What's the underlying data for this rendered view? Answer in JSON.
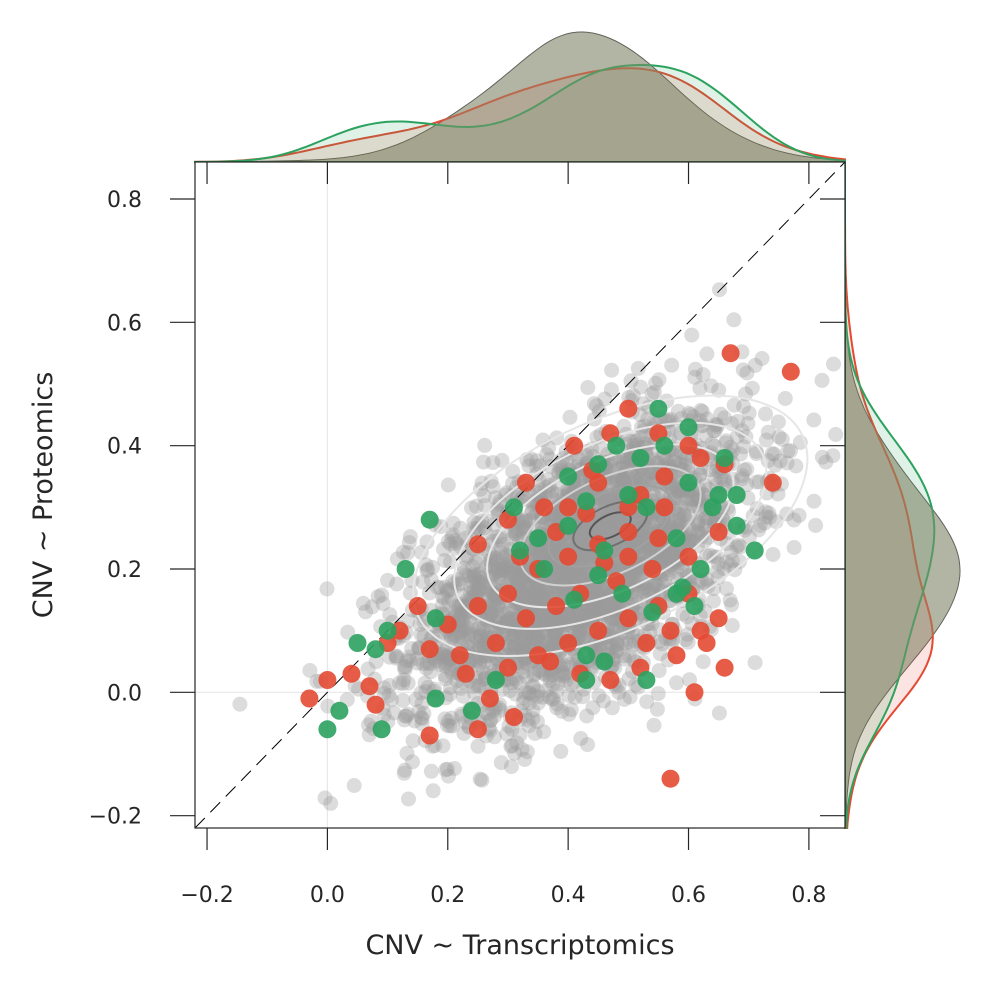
{
  "chart_data": {
    "type": "scatter",
    "title": "",
    "xlabel": "CNV ~ Transcriptomics",
    "ylabel": "CNV ~ Proteomics",
    "xlim": [
      -0.22,
      0.86
    ],
    "ylim": [
      -0.22,
      0.86
    ],
    "x_ticks": [
      "−0.2",
      "0.0",
      "0.2",
      "0.4",
      "0.6",
      "0.8"
    ],
    "x_tick_values": [
      -0.2,
      0.0,
      0.2,
      0.4,
      0.6,
      0.8
    ],
    "y_ticks": [
      "−0.2",
      "0.0",
      "0.2",
      "0.4",
      "0.6",
      "0.8"
    ],
    "y_tick_values": [
      -0.2,
      0.0,
      0.2,
      0.4,
      0.6,
      0.8
    ],
    "grid": "zero lines only",
    "legend": "none",
    "reference_line": {
      "type": "diagonal y = x",
      "style": "dashed",
      "color": "#000000"
    },
    "colors": {
      "background": "#9a9a9a",
      "red": "#e34a33",
      "green": "#2ca25f",
      "contour_light": "#e6e6e6",
      "contour_dark": "#555555"
    },
    "background_cloud": {
      "center": [
        0.42,
        0.2
      ],
      "spread_x": 0.14,
      "spread_y": 0.12,
      "correlation": 0.55,
      "approx_points": 3000
    },
    "series": [
      {
        "color": "#e34a33",
        "points": [
          [
            0.77,
            0.52
          ],
          [
            0.67,
            0.55
          ],
          [
            0.74,
            0.34
          ],
          [
            0.5,
            0.46
          ],
          [
            0.47,
            0.42
          ],
          [
            0.55,
            0.42
          ],
          [
            0.6,
            0.4
          ],
          [
            0.62,
            0.38
          ],
          [
            0.66,
            0.37
          ],
          [
            0.52,
            0.32
          ],
          [
            0.56,
            0.35
          ],
          [
            0.5,
            0.3
          ],
          [
            0.45,
            0.34
          ],
          [
            0.43,
            0.29
          ],
          [
            0.4,
            0.3
          ],
          [
            0.33,
            0.34
          ],
          [
            0.36,
            0.3
          ],
          [
            0.3,
            0.28
          ],
          [
            0.25,
            0.24
          ],
          [
            0.35,
            0.2
          ],
          [
            0.4,
            0.22
          ],
          [
            0.45,
            0.24
          ],
          [
            0.5,
            0.22
          ],
          [
            0.55,
            0.25
          ],
          [
            0.6,
            0.22
          ],
          [
            0.65,
            0.26
          ],
          [
            0.48,
            0.18
          ],
          [
            0.42,
            0.16
          ],
          [
            0.38,
            0.14
          ],
          [
            0.33,
            0.12
          ],
          [
            0.3,
            0.16
          ],
          [
            0.25,
            0.14
          ],
          [
            0.2,
            0.11
          ],
          [
            0.15,
            0.14
          ],
          [
            0.12,
            0.1
          ],
          [
            0.1,
            0.08
          ],
          [
            0.17,
            0.07
          ],
          [
            0.22,
            0.06
          ],
          [
            0.28,
            0.08
          ],
          [
            0.35,
            0.06
          ],
          [
            0.4,
            0.08
          ],
          [
            0.45,
            0.1
          ],
          [
            0.5,
            0.12
          ],
          [
            0.55,
            0.14
          ],
          [
            0.6,
            0.16
          ],
          [
            0.65,
            0.12
          ],
          [
            0.63,
            0.08
          ],
          [
            0.58,
            0.06
          ],
          [
            0.52,
            0.04
          ],
          [
            0.47,
            0.02
          ],
          [
            0.42,
            0.03
          ],
          [
            0.37,
            0.05
          ],
          [
            0.3,
            0.04
          ],
          [
            0.23,
            0.03
          ],
          [
            0.27,
            -0.01
          ],
          [
            0.31,
            -0.04
          ],
          [
            0.25,
            -0.06
          ],
          [
            0.17,
            -0.07
          ],
          [
            0.08,
            -0.02
          ],
          [
            0.04,
            0.03
          ],
          [
            0.0,
            0.02
          ],
          [
            -0.03,
            -0.01
          ],
          [
            0.07,
            0.01
          ],
          [
            0.57,
            -0.14
          ],
          [
            0.61,
            0.0
          ],
          [
            0.66,
            0.04
          ],
          [
            0.62,
            0.1
          ],
          [
            0.57,
            0.1
          ],
          [
            0.53,
            0.08
          ],
          [
            0.44,
            0.36
          ],
          [
            0.41,
            0.4
          ],
          [
            0.56,
            0.3
          ],
          [
            0.54,
            0.2
          ],
          [
            0.5,
            0.26
          ],
          [
            0.46,
            0.21
          ],
          [
            0.38,
            0.26
          ],
          [
            0.32,
            0.22
          ]
        ]
      },
      {
        "color": "#2ca25f",
        "points": [
          [
            0.17,
            0.28
          ],
          [
            0.55,
            0.46
          ],
          [
            0.6,
            0.43
          ],
          [
            0.66,
            0.38
          ],
          [
            0.68,
            0.32
          ],
          [
            0.64,
            0.3
          ],
          [
            0.6,
            0.34
          ],
          [
            0.56,
            0.4
          ],
          [
            0.52,
            0.38
          ],
          [
            0.48,
            0.4
          ],
          [
            0.45,
            0.37
          ],
          [
            0.43,
            0.31
          ],
          [
            0.4,
            0.27
          ],
          [
            0.35,
            0.25
          ],
          [
            0.31,
            0.3
          ],
          [
            0.32,
            0.23
          ],
          [
            0.36,
            0.2
          ],
          [
            0.46,
            0.23
          ],
          [
            0.5,
            0.32
          ],
          [
            0.53,
            0.3
          ],
          [
            0.58,
            0.25
          ],
          [
            0.62,
            0.2
          ],
          [
            0.59,
            0.17
          ],
          [
            0.54,
            0.13
          ],
          [
            0.49,
            0.16
          ],
          [
            0.41,
            0.15
          ],
          [
            0.43,
            0.06
          ],
          [
            0.46,
            0.05
          ],
          [
            0.53,
            0.02
          ],
          [
            0.43,
            0.02
          ],
          [
            0.18,
            0.12
          ],
          [
            0.13,
            0.2
          ],
          [
            0.1,
            0.1
          ],
          [
            0.08,
            0.07
          ],
          [
            0.05,
            0.08
          ],
          [
            0.02,
            -0.03
          ],
          [
            0.0,
            -0.06
          ],
          [
            0.09,
            -0.06
          ],
          [
            0.18,
            -0.01
          ],
          [
            0.24,
            -0.03
          ],
          [
            0.28,
            0.02
          ],
          [
            0.71,
            0.23
          ],
          [
            0.68,
            0.27
          ],
          [
            0.61,
            0.14
          ],
          [
            0.58,
            0.16
          ],
          [
            0.45,
            0.19
          ],
          [
            0.65,
            0.32
          ],
          [
            0.4,
            0.35
          ]
        ]
      }
    ],
    "marginal_x": {
      "type": "kde",
      "note": "top density of x",
      "peak_x": 0.5
    },
    "marginal_y": {
      "type": "kde",
      "note": "right density of y",
      "peak_y": 0.22
    }
  }
}
